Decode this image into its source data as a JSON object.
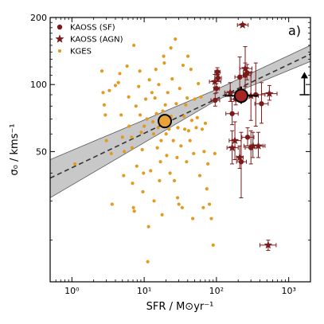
{
  "chart_data": {
    "type": "scatter",
    "panel_label": "a)",
    "xlabel": "SFR / M⊙yr⁻¹",
    "ylabel": "σ₀ / kms⁻¹",
    "x_scale": "log",
    "y_scale": "log",
    "xlim": [
      0.5,
      2000
    ],
    "ylim": [
      13,
      200
    ],
    "x_ticks": [
      {
        "value": 1,
        "label": "10⁰"
      },
      {
        "value": 10,
        "label": "10¹"
      },
      {
        "value": 100,
        "label": "10²"
      },
      {
        "value": 1000,
        "label": "10³"
      }
    ],
    "y_ticks": [
      {
        "value": 50,
        "label": "50"
      },
      {
        "value": 100,
        "label": "100"
      },
      {
        "value": 200,
        "label": "200"
      }
    ],
    "legend_position": "top-left",
    "colors": {
      "kaoss": "#7b1a1a",
      "kges": "#e29a1f",
      "fit_band": "#9a9a9a",
      "fit_line": "#333333"
    },
    "fit": {
      "line": [
        [
          0.5,
          38
        ],
        [
          2000,
          137
        ]
      ],
      "band_lower": [
        [
          0.5,
          31
        ],
        [
          100,
          85
        ],
        [
          2000,
          127
        ]
      ],
      "band_upper": [
        [
          0.5,
          46
        ],
        [
          100,
          95
        ],
        [
          2000,
          150
        ]
      ]
    },
    "series": [
      {
        "name": "KAOSS (SF)",
        "marker": "circle",
        "points": [
          {
            "x": 103,
            "y": 114,
            "xerr": [
              8,
              10
            ],
            "yerr": [
              4,
              5
            ]
          },
          {
            "x": 105,
            "y": 107,
            "xerr": [
              10,
              12
            ],
            "yerr": [
              3,
              4
            ]
          },
          {
            "x": 100,
            "y": 96,
            "xerr": [
              8,
              10
            ],
            "yerr": [
              4,
              5
            ]
          },
          {
            "x": 96,
            "y": 85,
            "xerr": [
              12,
              15
            ],
            "yerr": [
              5,
              6
            ]
          },
          {
            "x": 165,
            "y": 74,
            "xerr": [
              30,
              35
            ],
            "yerr": [
              8,
              10
            ]
          },
          {
            "x": 185,
            "y": 86,
            "xerr": [
              25,
              30
            ],
            "yerr": [
              5,
              6
            ]
          },
          {
            "x": 210,
            "y": 108,
            "xerr": [
              30,
              40
            ],
            "yerr": [
              20,
              25
            ]
          },
          {
            "x": 250,
            "y": 110,
            "xerr": [
              40,
              50
            ],
            "yerr": [
              12,
              15
            ]
          },
          {
            "x": 265,
            "y": 113,
            "xerr": [
              30,
              40
            ],
            "yerr": [
              8,
              10
            ]
          },
          {
            "x": 220,
            "y": 45,
            "xerr": [
              30,
              40
            ],
            "yerr": [
              14,
              16
            ]
          },
          {
            "x": 270,
            "y": 58,
            "xerr": [
              45,
              60
            ],
            "yerr": [
              5,
              6
            ]
          },
          {
            "x": 350,
            "y": 90,
            "xerr": [
              80,
              120
            ],
            "yerr": [
              25,
              35
            ]
          },
          {
            "x": 420,
            "y": 82,
            "xerr": [
              80,
              100
            ],
            "yerr": [
              15,
              20
            ]
          },
          {
            "x": 300,
            "y": 52,
            "xerr": [
              50,
              80
            ],
            "yerr": [
              8,
              10
            ]
          }
        ]
      },
      {
        "name": "KAOSS (AGN)",
        "marker": "star",
        "points": [
          {
            "x": 95,
            "y": 103,
            "xerr": [
              15,
              20
            ],
            "yerr": [
              6,
              8
            ]
          },
          {
            "x": 155,
            "y": 92,
            "xerr": [
              25,
              30
            ],
            "yerr": [
              8,
              10
            ]
          },
          {
            "x": 165,
            "y": 52,
            "xerr": [
              25,
              35
            ],
            "yerr": [
              8,
              10
            ]
          },
          {
            "x": 180,
            "y": 56,
            "xerr": [
              30,
              40
            ],
            "yerr": [
              10,
              12
            ]
          },
          {
            "x": 210,
            "y": 47,
            "xerr": [
              20,
              25
            ],
            "yerr": [
              5,
              6
            ]
          },
          {
            "x": 250,
            "y": 118,
            "xerr": [
              40,
              60
            ],
            "yerr": [
              25,
              30
            ]
          },
          {
            "x": 300,
            "y": 89,
            "xerr": [
              60,
              80
            ],
            "yerr": [
              20,
              25
            ]
          },
          {
            "x": 230,
            "y": 185,
            "xerr": [
              35,
              45
            ],
            "yerr": [
              3,
              3
            ]
          },
          {
            "x": 320,
            "y": 53,
            "xerr": [
              80,
              120
            ],
            "yerr": [
              6,
              8
            ]
          },
          {
            "x": 380,
            "y": 53,
            "xerr": [
              60,
              90
            ],
            "yerr": [
              6,
              8
            ]
          },
          {
            "x": 520,
            "y": 19,
            "xerr": [
              120,
              150
            ],
            "yerr": [
              1,
              1
            ]
          },
          {
            "x": 540,
            "y": 91,
            "xerr": [
              120,
              150
            ],
            "yerr": [
              6,
              8
            ]
          }
        ]
      },
      {
        "name": "KGES",
        "marker": "small-circle",
        "points": [
          [
            1.1,
            44
          ],
          [
            2.6,
            115
          ],
          [
            2.7,
            92
          ],
          [
            2.8,
            81
          ],
          [
            2.9,
            73
          ],
          [
            3.0,
            56
          ],
          [
            3.5,
            49
          ],
          [
            3.6,
            29
          ],
          [
            4.4,
            102
          ],
          [
            4.6,
            112
          ],
          [
            4.8,
            73
          ],
          [
            5.0,
            58
          ],
          [
            5.2,
            39
          ],
          [
            5.3,
            50
          ],
          [
            5.8,
            121
          ],
          [
            6.1,
            88
          ],
          [
            6.2,
            65
          ],
          [
            6.7,
            58
          ],
          [
            6.8,
            52
          ],
          [
            6.9,
            36
          ],
          [
            7.1,
            28
          ],
          [
            7.3,
            27
          ],
          [
            7.7,
            80
          ],
          [
            7.9,
            43
          ],
          [
            8.4,
            98
          ],
          [
            8.7,
            115
          ],
          [
            8.8,
            73
          ],
          [
            9.1,
            61
          ],
          [
            9.4,
            51
          ],
          [
            9.6,
            33
          ],
          [
            9.8,
            40
          ],
          [
            10.0,
            65
          ],
          [
            10.5,
            86
          ],
          [
            10.9,
            70
          ],
          [
            11.2,
            16
          ],
          [
            11.5,
            23
          ],
          [
            11.8,
            105
          ],
          [
            12.3,
            41
          ],
          [
            12.8,
            92
          ],
          [
            13.2,
            68
          ],
          [
            13.5,
            60
          ],
          [
            13.7,
            30
          ],
          [
            14.1,
            87
          ],
          [
            14.5,
            117
          ],
          [
            14.8,
            74
          ],
          [
            15.2,
            52
          ],
          [
            15.6,
            64
          ],
          [
            15.9,
            100
          ],
          [
            16.3,
            37
          ],
          [
            16.8,
            45
          ],
          [
            17.2,
            56
          ],
          [
            17.7,
            26
          ],
          [
            18.1,
            76
          ],
          [
            18.6,
            134
          ],
          [
            19.0,
            125
          ],
          [
            19.6,
            81
          ],
          [
            20.1,
            60
          ],
          [
            20.5,
            48
          ],
          [
            21.2,
            92
          ],
          [
            22.1,
            63
          ],
          [
            22.8,
            40
          ],
          [
            23.6,
            72
          ],
          [
            24.4,
            106
          ],
          [
            25.3,
            56
          ],
          [
            26.2,
            37
          ],
          [
            27.0,
            160
          ],
          [
            27.8,
            82
          ],
          [
            28.5,
            47
          ],
          [
            29.3,
            64
          ],
          [
            30.2,
            29
          ],
          [
            31.0,
            96
          ],
          [
            32.3,
            53
          ],
          [
            33.6,
            28
          ],
          [
            34.5,
            122
          ],
          [
            35.5,
            72
          ],
          [
            36.4,
            63
          ],
          [
            37.6,
            81
          ],
          [
            38.6,
            45
          ],
          [
            39.4,
            87
          ],
          [
            40.3,
            134
          ],
          [
            41.2,
            62
          ],
          [
            43.1,
            56
          ],
          [
            44.3,
            117
          ],
          [
            45.6,
            69
          ],
          [
            47.0,
            25
          ],
          [
            48.4,
            49
          ],
          [
            50.1,
            86
          ],
          [
            52.5,
            64
          ],
          [
            54.3,
            71
          ],
          [
            56.2,
            101
          ],
          [
            58.8,
            39
          ],
          [
            61.0,
            88
          ],
          [
            63.4,
            63
          ],
          [
            65.8,
            28
          ],
          [
            67.5,
            50
          ],
          [
            70.2,
            67
          ],
          [
            73.6,
            34
          ],
          [
            76.1,
            44
          ],
          [
            80.0,
            29
          ],
          [
            85.0,
            25
          ],
          [
            90.0,
            19
          ],
          [
            95.0,
            49
          ],
          [
            29.0,
            31
          ],
          [
            23.4,
            146
          ],
          [
            7.2,
            150
          ],
          [
            4.0,
            99
          ],
          [
            3.3,
            94
          ]
        ]
      }
    ],
    "medians": [
      {
        "name": "KGES median",
        "x": 19.3,
        "y": 68.5,
        "color": "#e9a23a"
      },
      {
        "name": "KAOSS median",
        "x": 220,
        "y": 89,
        "color": "#a52525",
        "xerr": [
          90,
          160
        ],
        "yerr": [
          7,
          9
        ]
      }
    ],
    "arrow": {
      "x": 1650,
      "y_from": 90,
      "y_to": 112
    }
  }
}
